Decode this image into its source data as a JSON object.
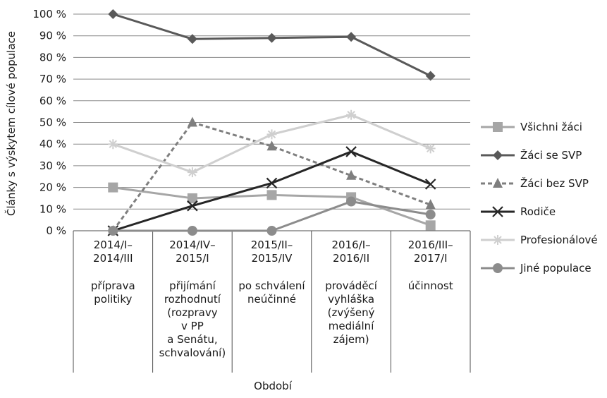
{
  "chart_data": {
    "type": "line",
    "ylabel": "Články s výskytem cílové populace",
    "xlabel": "Období",
    "ylim": [
      0,
      100
    ],
    "y_ticks": [
      "0 %",
      "10 %",
      "20 %",
      "30 %",
      "40 %",
      "50 %",
      "60 %",
      "70 %",
      "80 %",
      "90 %",
      "100 %"
    ],
    "categories": [
      {
        "period": [
          "2014/I–",
          "2014/III"
        ],
        "phase": [
          "příprava",
          "politiky"
        ]
      },
      {
        "period": [
          "2014/IV–",
          "2015/I"
        ],
        "phase": [
          "přijímání",
          "rozhodnutí",
          "(rozpravy",
          "v PP",
          "a Senátu,",
          "schvalování)"
        ]
      },
      {
        "period": [
          "2015/II–",
          "2015/IV"
        ],
        "phase": [
          "po schválení",
          "neúčinné"
        ]
      },
      {
        "period": [
          "2016/I–",
          "2016/II"
        ],
        "phase": [
          "prováděcí",
          "vyhláška",
          "(zvýšený",
          "mediální",
          "zájem)"
        ]
      },
      {
        "period": [
          "2016/III–",
          "2017/I"
        ],
        "phase": [
          "účinnost"
        ]
      }
    ],
    "series": [
      {
        "name": "Všichni žáci",
        "values": [
          20,
          15,
          16.5,
          15.5,
          2.5
        ],
        "color": "#a6a6a6",
        "marker": "square",
        "dash": "solid"
      },
      {
        "name": "Žáci se SVP",
        "values": [
          100,
          88.5,
          89,
          89.5,
          71.5
        ],
        "color": "#595959",
        "marker": "diamond",
        "dash": "solid"
      },
      {
        "name": "Žáci bez SVP",
        "values": [
          0,
          50,
          39,
          25.5,
          12
        ],
        "color": "#7f7f7f",
        "marker": "triangle",
        "dash": "dashed"
      },
      {
        "name": "Rodiče",
        "values": [
          0,
          11.5,
          22,
          36.5,
          21.5
        ],
        "color": "#262626",
        "marker": "x",
        "dash": "solid"
      },
      {
        "name": "Profesionálové",
        "values": [
          40,
          27,
          44.5,
          53.5,
          38
        ],
        "color": "#cfcfcf",
        "marker": "star",
        "dash": "solid"
      },
      {
        "name": "Jiné populace",
        "values": [
          0,
          0,
          0,
          13.5,
          7.5
        ],
        "color": "#8c8c8c",
        "marker": "circle",
        "dash": "solid"
      }
    ],
    "grid": true,
    "legend_position": "right"
  }
}
